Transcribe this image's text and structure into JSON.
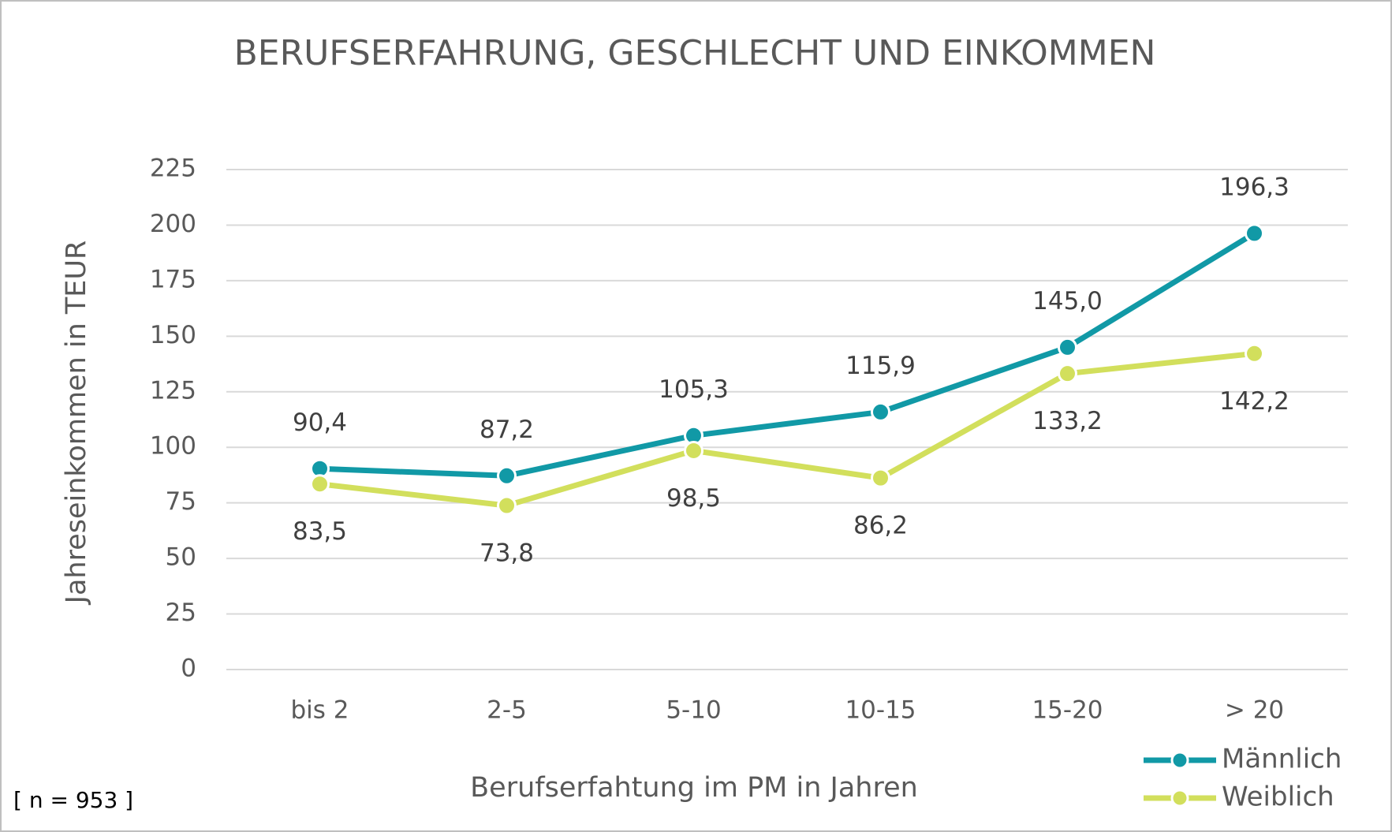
{
  "chart_data": {
    "type": "line",
    "title": "BERUFSERFAHRUNG, GESCHLECHT UND EINKOMMEN",
    "x_label": "Berufserfahtung im PM in Jahren",
    "y_label": "Jahreseinkommen in TEUR",
    "annotation": "[ n = 953 ]",
    "categories": [
      "bis 2",
      "2-5",
      "5-10",
      "10-15",
      "15-20",
      "> 20"
    ],
    "series": [
      {
        "name": "Männlich",
        "color": "#1199a6",
        "values": [
          90.4,
          87.2,
          105.3,
          115.9,
          145.0,
          196.3
        ],
        "value_labels": [
          "90,4",
          "87,2",
          "105,3",
          "115,9",
          "145,0",
          "196,3"
        ]
      },
      {
        "name": "Weiblich",
        "color": "#d2df5c",
        "values": [
          83.5,
          73.8,
          98.5,
          86.2,
          133.2,
          142.2
        ],
        "value_labels": [
          "83,5",
          "73,8",
          "98,5",
          "86,2",
          "133,2",
          "142,2"
        ]
      }
    ],
    "ylim": [
      0,
      225
    ],
    "yticks": [
      0,
      25,
      50,
      75,
      100,
      125,
      150,
      175,
      200,
      225
    ],
    "grid": true,
    "legend": "bottom-right"
  }
}
